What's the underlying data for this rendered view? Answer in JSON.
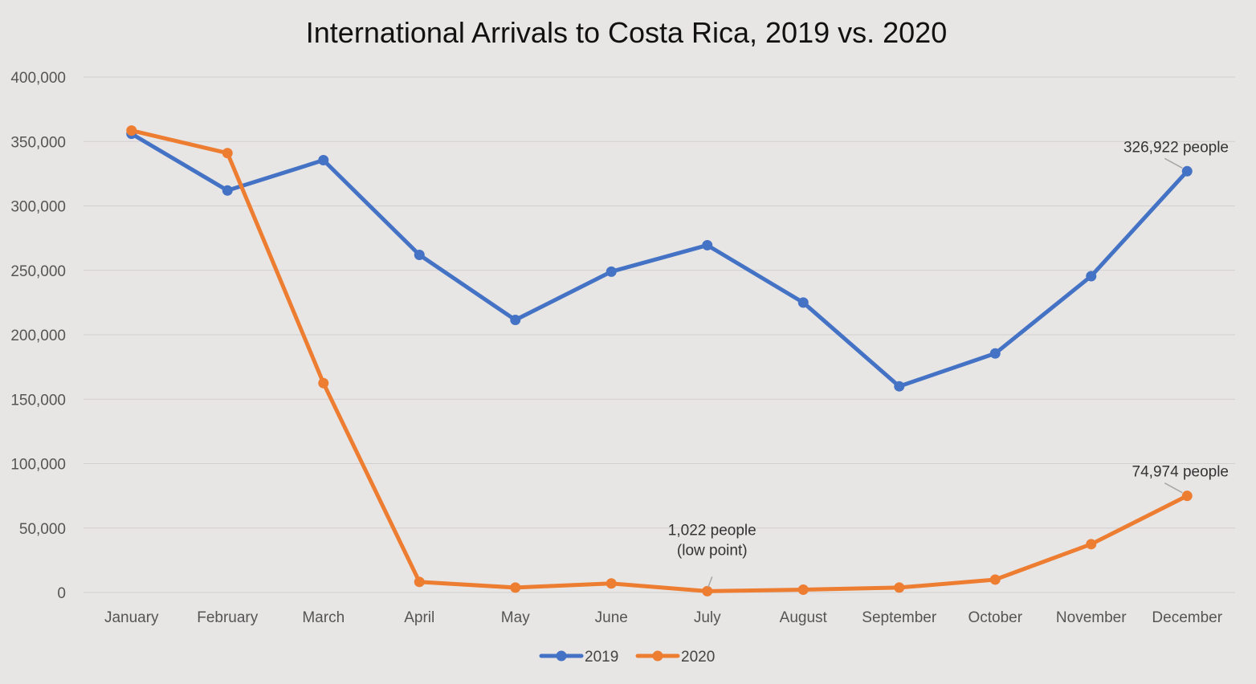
{
  "chart_data": {
    "type": "line",
    "title": "International Arrivals to Costa Rica, 2019 vs. 2020",
    "xlabel": "",
    "ylabel": "",
    "categories": [
      "January",
      "February",
      "March",
      "April",
      "May",
      "June",
      "July",
      "August",
      "September",
      "October",
      "November",
      "December"
    ],
    "ylim": [
      0,
      400000
    ],
    "yticks": [
      0,
      50000,
      100000,
      150000,
      200000,
      250000,
      300000,
      350000,
      400000
    ],
    "ytick_labels": [
      "0",
      "50,000",
      "100,000",
      "150,000",
      "200,000",
      "250,000",
      "300,000",
      "350,000",
      "400,000"
    ],
    "grid": true,
    "legend_position": "bottom",
    "series": [
      {
        "name": "2019",
        "color": "#4472c4",
        "values": [
          356000,
          312000,
          335500,
          262000,
          211500,
          249000,
          269500,
          225000,
          160000,
          185500,
          245500,
          326922
        ]
      },
      {
        "name": "2020",
        "color": "#ed7d31",
        "values": [
          358500,
          341000,
          162500,
          8200,
          3800,
          7000,
          1022,
          2200,
          3800,
          10000,
          37500,
          74974
        ]
      }
    ],
    "annotations": [
      {
        "series": "2019",
        "category": "December",
        "lines": [
          "326,922 people"
        ]
      },
      {
        "series": "2020",
        "category": "December",
        "lines": [
          "74,974 people"
        ]
      },
      {
        "series": "2020",
        "category": "July",
        "lines": [
          "1,022 people",
          "(low point)"
        ]
      }
    ]
  }
}
